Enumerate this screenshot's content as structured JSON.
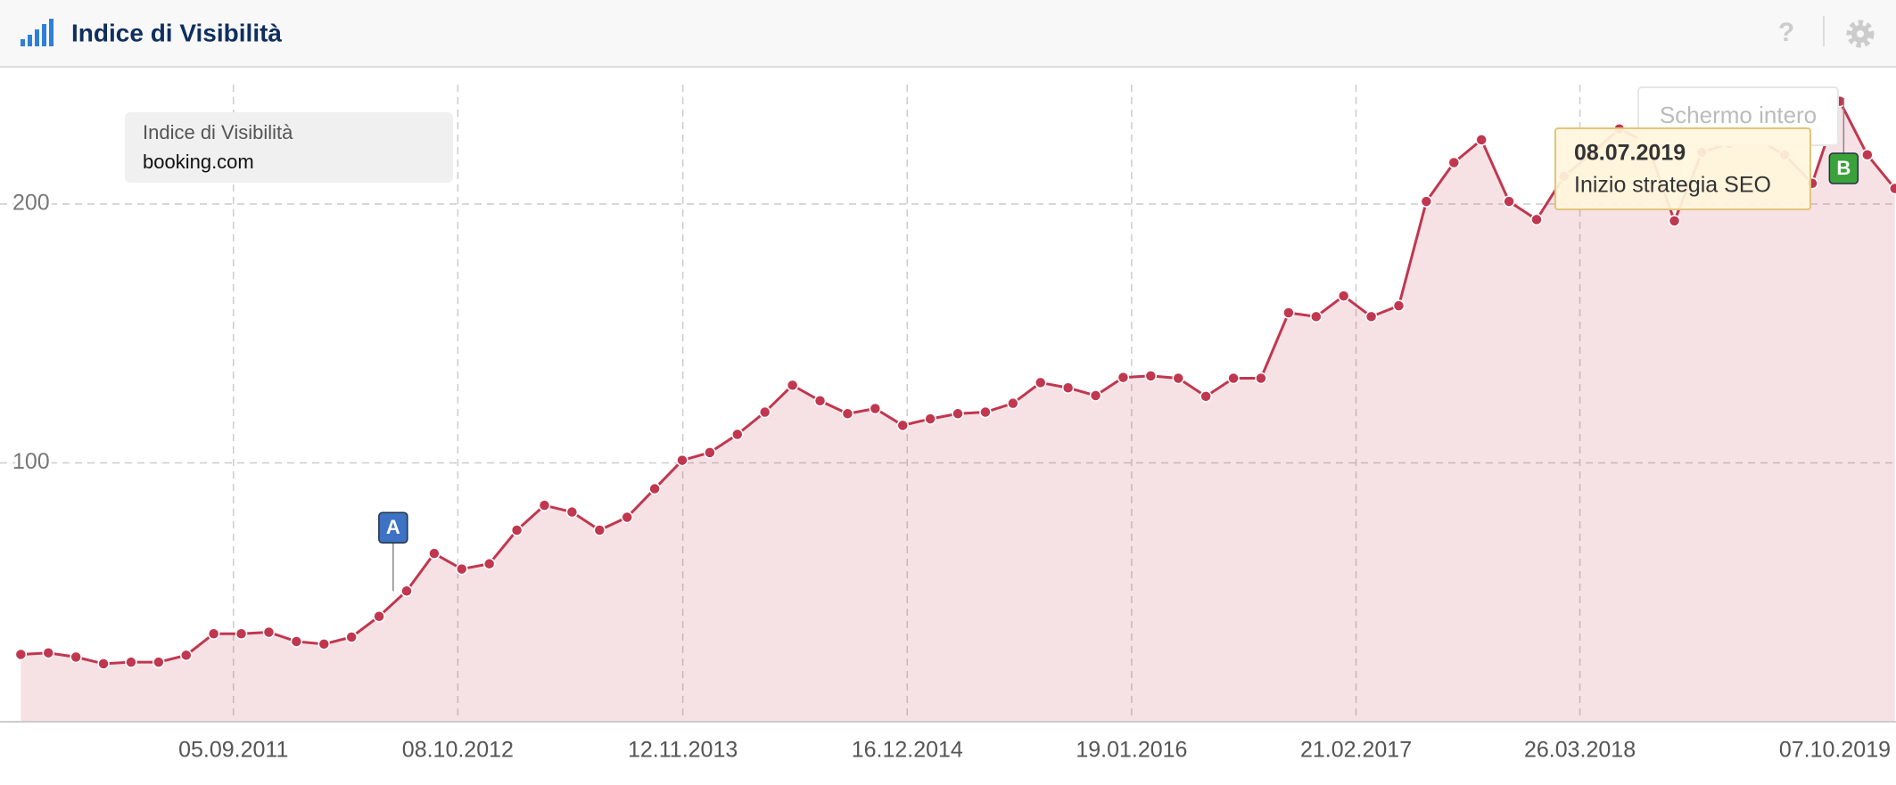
{
  "header": {
    "title": "Indice di Visibilità",
    "help": "?"
  },
  "button": "Schermo intero",
  "chart_data": {
    "type": "area",
    "legend_title": "Indice di Visibilità",
    "x": [
      "23.08.2010",
      "11.10.2010",
      "29.11.2010",
      "17.01.2011",
      "07.03.2011",
      "25.04.2011",
      "13.06.2011",
      "01.08.2011",
      "19.09.2011",
      "07.11.2011",
      "26.12.2011",
      "13.02.2012",
      "02.04.2012",
      "21.05.2012",
      "09.07.2012",
      "27.08.2012",
      "15.10.2012",
      "03.12.2012",
      "21.01.2013",
      "11.03.2013",
      "29.04.2013",
      "17.06.2013",
      "05.08.2013",
      "23.09.2013",
      "11.11.2013",
      "30.12.2013",
      "17.02.2014",
      "07.04.2014",
      "26.05.2014",
      "14.07.2014",
      "01.09.2014",
      "20.10.2014",
      "08.12.2014",
      "26.01.2015",
      "16.03.2015",
      "04.05.2015",
      "22.06.2015",
      "10.08.2015",
      "28.09.2015",
      "16.11.2015",
      "04.01.2016",
      "22.02.2016",
      "11.04.2016",
      "30.05.2016",
      "18.07.2016",
      "05.09.2016",
      "24.10.2016",
      "12.12.2016",
      "30.01.2017",
      "20.03.2017",
      "08.05.2017",
      "26.06.2017",
      "14.08.2017",
      "02.10.2017",
      "20.11.2017",
      "08.01.2018",
      "26.02.2018",
      "16.04.2018",
      "04.06.2018",
      "23.07.2018",
      "10.09.2018",
      "29.10.2018",
      "17.12.2018",
      "04.02.2019",
      "25.03.2019",
      "13.05.2019",
      "01.07.2019",
      "19.08.2019",
      "07.10.2019"
    ],
    "series": [
      {
        "name": "booking.com",
        "color": "#c0374f",
        "values": [
          26,
          26.6,
          25,
          22.4,
          23,
          23,
          25.7,
          34,
          34,
          34.6,
          31,
          30,
          32.7,
          40.7,
          50.5,
          65,
          59,
          61,
          74,
          83.6,
          81,
          74,
          79,
          90,
          101,
          104,
          111,
          119.6,
          130,
          124,
          119,
          121,
          114.5,
          117,
          119,
          119.6,
          123,
          131,
          129,
          126,
          133,
          133.6,
          132.7,
          125.7,
          132.7,
          132.7,
          158,
          156.5,
          164.5,
          156.5,
          160.7,
          201,
          216,
          224.8,
          201,
          194,
          210.7,
          219.6,
          229,
          223.8,
          193.5,
          220,
          223.4,
          225,
          219,
          208,
          239.7,
          219,
          206
        ]
      }
    ],
    "xlim": [
      "17.07.2010",
      "09.10.2019"
    ],
    "xticks": [
      "05.09.2011",
      "08.10.2012",
      "12.11.2013",
      "16.12.2014",
      "19.01.2016",
      "21.02.2017",
      "26.03.2018",
      "07.10.2019"
    ],
    "ylim": [
      0,
      253
    ],
    "yticks": [
      100,
      200
    ],
    "grid": true,
    "annotations": [
      {
        "x": "15.06.2012",
        "label": "A",
        "color": "#3d72c4"
      },
      {
        "x": "08.07.2019",
        "label": "B",
        "color": "#3aa23a",
        "text": "Inizio strategia SEO"
      }
    ]
  }
}
